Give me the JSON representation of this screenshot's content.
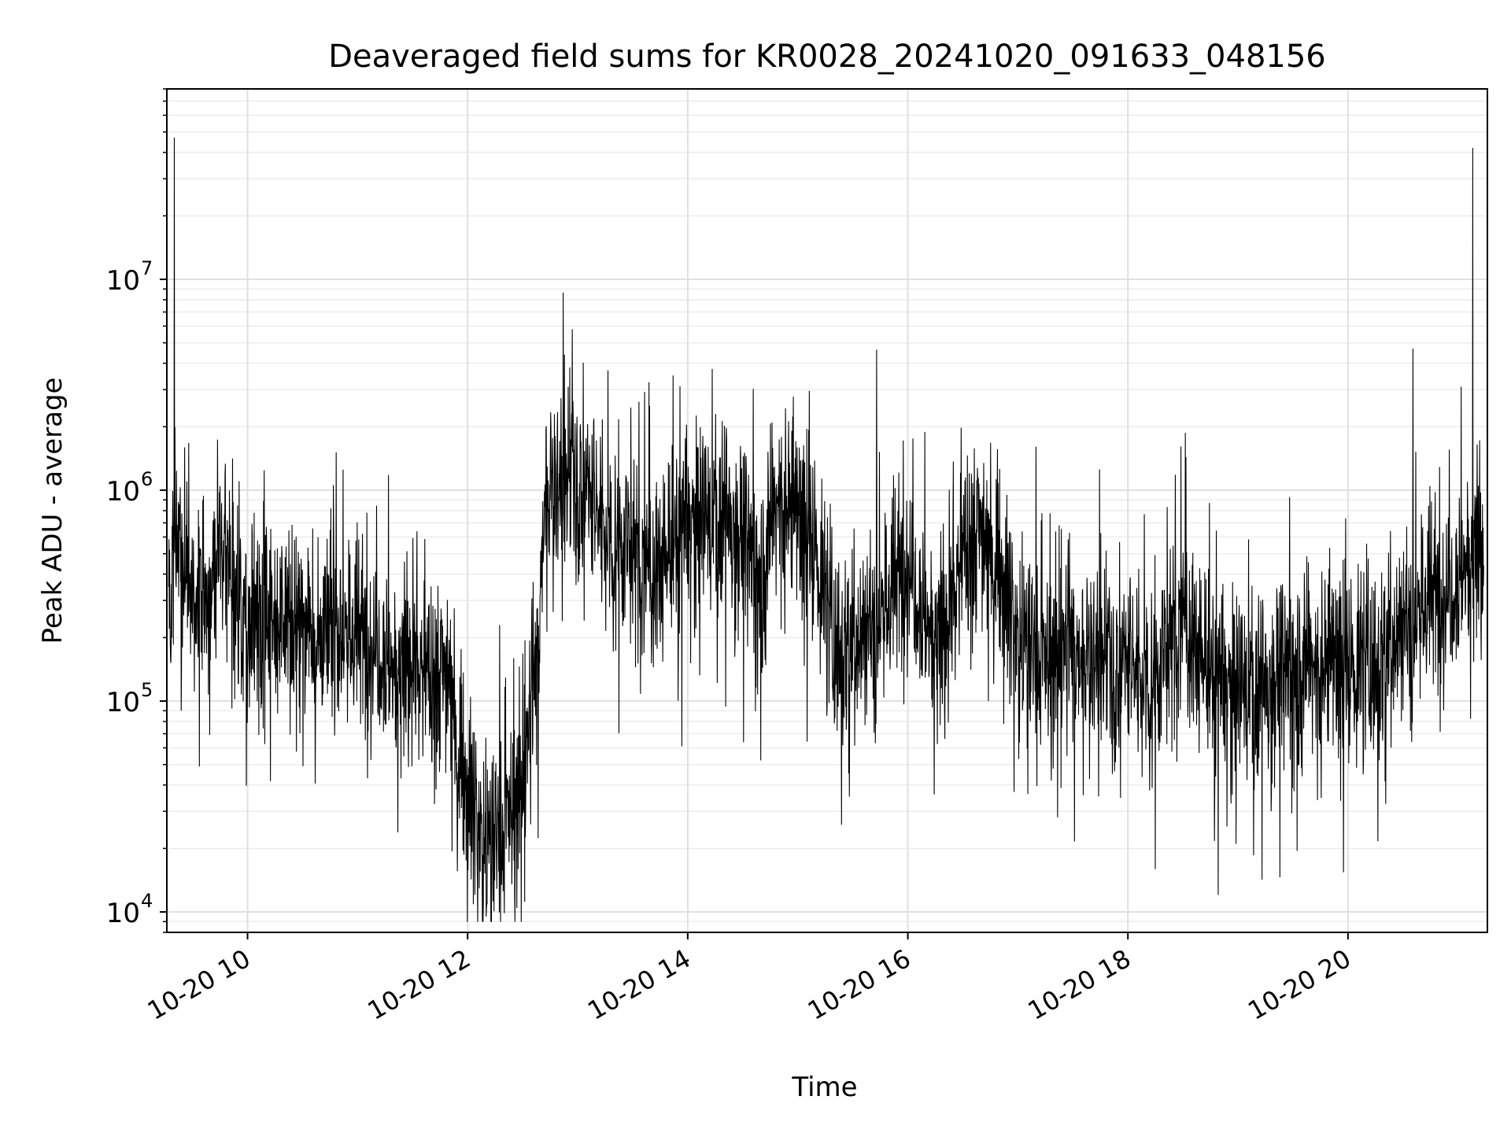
{
  "chart_data": {
    "type": "line",
    "title": "Deaveraged field sums for KR0028_20241020_091633_048156",
    "xlabel": "Time",
    "ylabel": "Peak ADU - average",
    "yscale": "log",
    "xlim": [
      "2024-10-20 09:16",
      "2024-10-20 21:16"
    ],
    "ylim": [
      8000,
      80000000
    ],
    "grid": true,
    "line_color": "#000000",
    "x_ticks": [
      {
        "value": "2024-10-20 10:00",
        "label": "10-20 10"
      },
      {
        "value": "2024-10-20 12:00",
        "label": "10-20 12"
      },
      {
        "value": "2024-10-20 14:00",
        "label": "10-20 14"
      },
      {
        "value": "2024-10-20 16:00",
        "label": "10-20 16"
      },
      {
        "value": "2024-10-20 18:00",
        "label": "10-20 18"
      },
      {
        "value": "2024-10-20 20:00",
        "label": "10-20 20"
      }
    ],
    "y_ticks": [
      {
        "value": 10000,
        "base": "10",
        "exp": "4"
      },
      {
        "value": 100000,
        "base": "10",
        "exp": "5"
      },
      {
        "value": 1000000,
        "base": "10",
        "exp": "6"
      },
      {
        "value": 10000000,
        "base": "10",
        "exp": "7"
      }
    ],
    "series": [
      {
        "x": [
          "2024-10-20 09:17",
          "2024-10-20 09:22",
          "2024-10-20 09:26",
          "2024-10-20 09:32",
          "2024-10-20 09:38",
          "2024-10-20 09:45",
          "2024-10-20 09:52",
          "2024-10-20 10:00",
          "2024-10-20 10:10",
          "2024-10-20 10:20",
          "2024-10-20 10:30",
          "2024-10-20 10:40",
          "2024-10-20 10:50",
          "2024-10-20 11:00",
          "2024-10-20 11:10",
          "2024-10-20 11:20",
          "2024-10-20 11:30",
          "2024-10-20 11:40",
          "2024-10-20 11:50",
          "2024-10-20 11:55",
          "2024-10-20 12:00",
          "2024-10-20 12:10",
          "2024-10-20 12:20",
          "2024-10-20 12:30",
          "2024-10-20 12:38",
          "2024-10-20 12:42",
          "2024-10-20 12:50",
          "2024-10-20 13:00",
          "2024-10-20 13:10",
          "2024-10-20 13:20",
          "2024-10-20 13:30",
          "2024-10-20 13:40",
          "2024-10-20 13:50",
          "2024-10-20 14:00",
          "2024-10-20 14:10",
          "2024-10-20 14:20",
          "2024-10-20 14:30",
          "2024-10-20 14:40",
          "2024-10-20 14:50",
          "2024-10-20 15:00",
          "2024-10-20 15:10",
          "2024-10-20 15:20",
          "2024-10-20 15:30",
          "2024-10-20 15:40",
          "2024-10-20 15:50",
          "2024-10-20 16:00",
          "2024-10-20 16:10",
          "2024-10-20 16:20",
          "2024-10-20 16:30",
          "2024-10-20 16:40",
          "2024-10-20 16:50",
          "2024-10-20 17:00",
          "2024-10-20 17:15",
          "2024-10-20 17:30",
          "2024-10-20 17:45",
          "2024-10-20 18:00",
          "2024-10-20 18:15",
          "2024-10-20 18:30",
          "2024-10-20 18:45",
          "2024-10-20 19:00",
          "2024-10-20 19:15",
          "2024-10-20 19:30",
          "2024-10-20 19:45",
          "2024-10-20 20:00",
          "2024-10-20 20:15",
          "2024-10-20 20:30",
          "2024-10-20 20:45",
          "2024-10-20 21:00",
          "2024-10-20 21:05",
          "2024-10-20 21:10",
          "2024-10-20 21:14"
        ],
        "y": [
          250000,
          500000,
          400000,
          250000,
          300000,
          700000,
          350000,
          250000,
          250000,
          220000,
          250000,
          200000,
          230000,
          200000,
          200000,
          150000,
          150000,
          130000,
          150000,
          60000,
          40000,
          20000,
          25000,
          40000,
          150000,
          1000000,
          1000000,
          1200000,
          800000,
          600000,
          500000,
          400000,
          500000,
          700000,
          700000,
          800000,
          600000,
          400000,
          1000000,
          700000,
          500000,
          180000,
          200000,
          250000,
          300000,
          500000,
          250000,
          200000,
          500000,
          700000,
          450000,
          200000,
          150000,
          180000,
          150000,
          150000,
          130000,
          250000,
          130000,
          110000,
          120000,
          150000,
          150000,
          140000,
          150000,
          250000,
          300000,
          400000,
          500000,
          550000,
          450000
        ]
      }
    ],
    "spikes": [
      {
        "x": "2024-10-20 09:20",
        "y": 47000000
      },
      {
        "x": "2024-10-20 21:08",
        "y": 42000000
      },
      {
        "x": "2024-10-20 12:57",
        "y": 5800000
      }
    ]
  }
}
